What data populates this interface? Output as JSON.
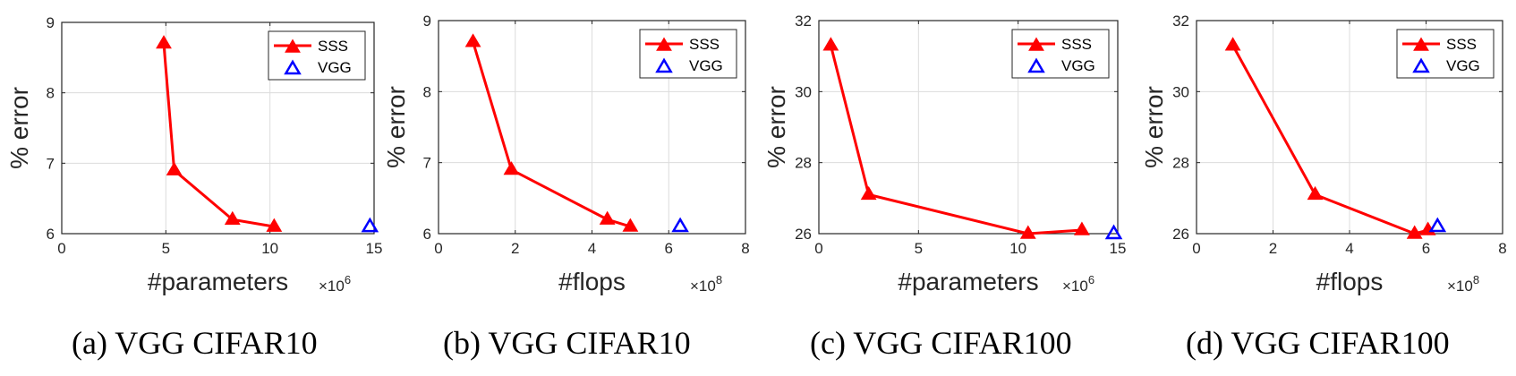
{
  "chart_data": [
    {
      "type": "line",
      "caption": "(a)  VGG CIFAR10",
      "xlabel": "#parameters",
      "ylabel": "% error",
      "x_multiplier": "×10",
      "x_multiplier_exp": "6",
      "xlim": [
        0,
        15
      ],
      "ylim": [
        6,
        9
      ],
      "xticks": [
        0,
        5,
        10,
        15
      ],
      "yticks": [
        6,
        7,
        8,
        9
      ],
      "grid": true,
      "legend": "top-right",
      "series": [
        {
          "name": "SSS",
          "color": "#ff0000",
          "marker": "filled-triangle",
          "line": true,
          "points": [
            [
              4.9,
              8.7
            ],
            [
              5.4,
              6.9
            ],
            [
              8.2,
              6.2
            ],
            [
              10.2,
              6.1
            ]
          ]
        },
        {
          "name": "VGG",
          "color": "#0000ff",
          "marker": "open-triangle",
          "line": false,
          "points": [
            [
              14.8,
              6.1
            ]
          ]
        }
      ]
    },
    {
      "type": "line",
      "caption": "(b)  VGG CIFAR10",
      "xlabel": "#flops",
      "ylabel": "% error",
      "x_multiplier": "×10",
      "x_multiplier_exp": "8",
      "xlim": [
        0,
        8
      ],
      "ylim": [
        6,
        9
      ],
      "xticks": [
        0,
        2,
        4,
        6,
        8
      ],
      "yticks": [
        6,
        7,
        8,
        9
      ],
      "grid": true,
      "legend": "top-right",
      "series": [
        {
          "name": "SSS",
          "color": "#ff0000",
          "marker": "filled-triangle",
          "line": true,
          "points": [
            [
              0.9,
              8.7
            ],
            [
              1.9,
              6.9
            ],
            [
              4.4,
              6.2
            ],
            [
              5.0,
              6.1
            ]
          ]
        },
        {
          "name": "VGG",
          "color": "#0000ff",
          "marker": "open-triangle",
          "line": false,
          "points": [
            [
              6.3,
              6.1
            ]
          ]
        }
      ]
    },
    {
      "type": "line",
      "caption": "(c)  VGG CIFAR100",
      "xlabel": "#parameters",
      "ylabel": "% error",
      "x_multiplier": "×10",
      "x_multiplier_exp": "6",
      "xlim": [
        0,
        15
      ],
      "ylim": [
        26,
        32
      ],
      "xticks": [
        0,
        5,
        10,
        15
      ],
      "yticks": [
        26,
        28,
        30,
        32
      ],
      "grid": true,
      "legend": "top-right",
      "series": [
        {
          "name": "SSS",
          "color": "#ff0000",
          "marker": "filled-triangle",
          "line": true,
          "points": [
            [
              0.6,
              31.3
            ],
            [
              2.5,
              27.1
            ],
            [
              10.5,
              26.0
            ],
            [
              13.2,
              26.1
            ]
          ]
        },
        {
          "name": "VGG",
          "color": "#0000ff",
          "marker": "open-triangle",
          "line": false,
          "points": [
            [
              14.8,
              26.0
            ]
          ]
        }
      ]
    },
    {
      "type": "line",
      "caption": "(d)  VGG CIFAR100",
      "xlabel": "#flops",
      "ylabel": "% error",
      "x_multiplier": "×10",
      "x_multiplier_exp": "8",
      "xlim": [
        0,
        8
      ],
      "ylim": [
        26,
        32
      ],
      "xticks": [
        0,
        2,
        4,
        6,
        8
      ],
      "yticks": [
        26,
        28,
        30,
        32
      ],
      "grid": true,
      "legend": "top-right",
      "series": [
        {
          "name": "SSS",
          "color": "#ff0000",
          "marker": "filled-triangle",
          "line": true,
          "points": [
            [
              0.95,
              31.3
            ],
            [
              3.1,
              27.1
            ],
            [
              5.7,
              26.0
            ],
            [
              6.05,
              26.1
            ]
          ]
        },
        {
          "name": "VGG",
          "color": "#0000ff",
          "marker": "open-triangle",
          "line": false,
          "points": [
            [
              6.3,
              26.2
            ]
          ]
        }
      ]
    }
  ]
}
